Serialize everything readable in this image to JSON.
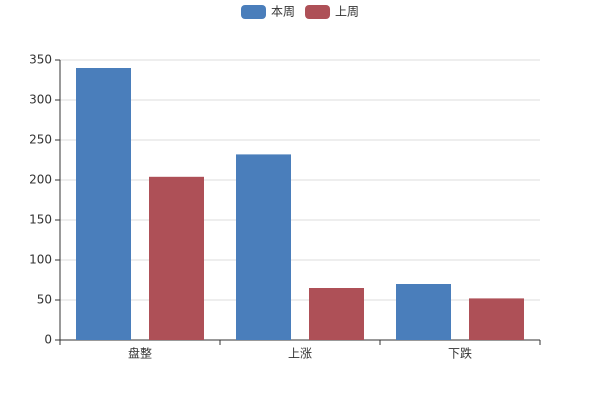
{
  "chart_data": {
    "type": "bar",
    "categories": [
      "盘整",
      "上涨",
      "下跌"
    ],
    "series": [
      {
        "name": "本周",
        "color": "#4a7ebb",
        "values": [
          340,
          232,
          70
        ]
      },
      {
        "name": "上周",
        "color": "#ae5057",
        "values": [
          204,
          65,
          52
        ]
      }
    ],
    "ylim": [
      0,
      350
    ],
    "yticks": [
      0,
      50,
      100,
      150,
      200,
      250,
      300,
      350
    ],
    "grid": true,
    "legend": "top"
  }
}
